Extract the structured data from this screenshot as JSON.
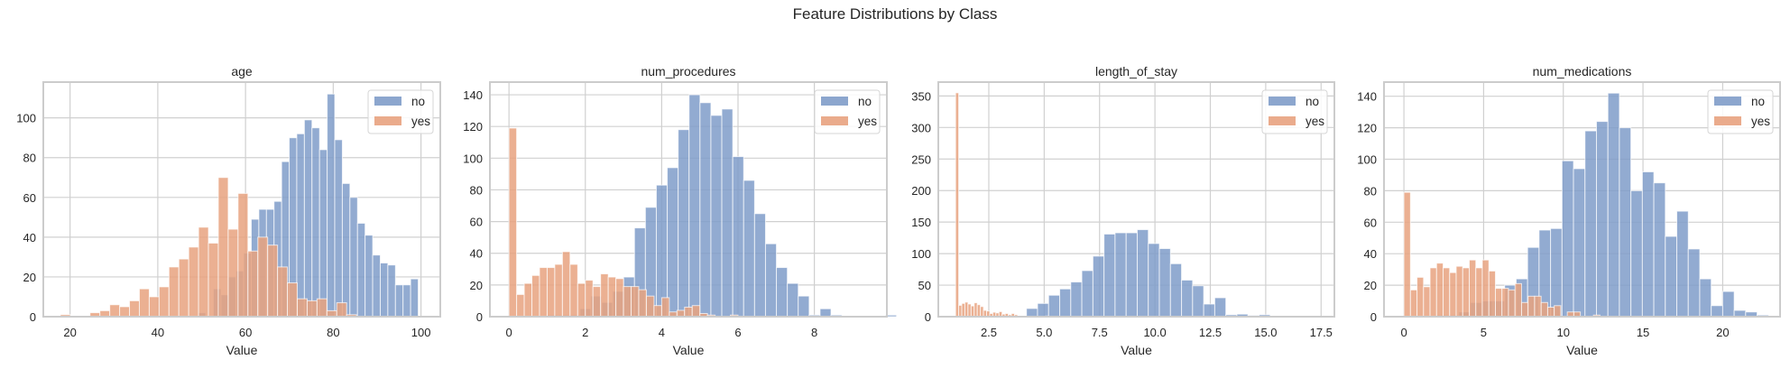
{
  "figure": {
    "title": "Feature Distributions by Class"
  },
  "colors": {
    "no": "#7f9cc9",
    "yes": "#e8a27f",
    "grid": "#d0d0d0",
    "spine": "#cccccc"
  },
  "legend": {
    "labels": [
      "no",
      "yes"
    ]
  },
  "chart_data": [
    {
      "type": "bar",
      "title": "age",
      "xlabel": "Value",
      "ylabel": "",
      "xlim": [
        13.9,
        104.4
      ],
      "ylim": [
        0,
        118
      ],
      "xticks": [
        20,
        40,
        60,
        80,
        100
      ],
      "xtick_labels": [
        "20",
        "40",
        "60",
        "80",
        "100"
      ],
      "yticks": [
        0,
        20,
        40,
        60,
        80,
        100
      ],
      "ytick_labels": [
        "0",
        "20",
        "40",
        "60",
        "80",
        "100"
      ],
      "grid": true,
      "legend_position": "upper right",
      "series": [
        {
          "name": "no",
          "bin_start": 49.2,
          "bin_width": 1.73,
          "values": [
            2,
            0,
            14,
            11,
            20,
            23,
            32,
            49,
            54,
            54,
            58,
            78,
            90,
            92,
            99,
            95,
            84,
            112,
            89,
            67,
            60,
            47,
            41,
            31,
            27,
            26,
            16,
            16,
            19
          ]
        },
        {
          "name": "yes",
          "bin_start": 17.8,
          "bin_width": 2.25,
          "values": [
            1,
            0,
            0,
            2,
            3,
            6,
            5,
            8,
            14,
            10,
            15,
            25,
            29,
            35,
            45,
            37,
            70,
            44,
            62,
            33,
            40,
            36,
            25,
            17,
            9,
            8,
            9,
            3,
            7,
            1
          ]
        }
      ]
    },
    {
      "type": "bar",
      "title": "num_procedures",
      "xlabel": "Value",
      "ylabel": "",
      "xlim": [
        -0.5,
        9.9
      ],
      "ylim": [
        0,
        148
      ],
      "xticks": [
        0,
        2,
        4,
        6,
        8
      ],
      "xtick_labels": [
        "0",
        "2",
        "4",
        "6",
        "8"
      ],
      "yticks": [
        0,
        20,
        40,
        60,
        80,
        100,
        120,
        140
      ],
      "ytick_labels": [
        "0",
        "20",
        "40",
        "60",
        "80",
        "100",
        "120",
        "140"
      ],
      "grid": true,
      "legend_position": "upper right",
      "series": [
        {
          "name": "no",
          "bin_start": 1.0,
          "bin_width": 0.286,
          "values": [
            1,
            1,
            1,
            5,
            13,
            9,
            16,
            25,
            56,
            69,
            83,
            94,
            118,
            140,
            135,
            127,
            131,
            101,
            86,
            65,
            46,
            31,
            21,
            13,
            1,
            5,
            1,
            0,
            0,
            0,
            0,
            1
          ]
        },
        {
          "name": "yes",
          "bin_start": 0.0,
          "bin_width": 0.2,
          "values": [
            119,
            14,
            21,
            26,
            31,
            31,
            33,
            41,
            33,
            21,
            23,
            19,
            27,
            25,
            24,
            19,
            19,
            17,
            13,
            7,
            12,
            3,
            4,
            6,
            7,
            2,
            1,
            0,
            0,
            1
          ]
        }
      ]
    },
    {
      "type": "bar",
      "title": "length_of_stay",
      "xlabel": "Value",
      "ylabel": "",
      "xlim": [
        0.22,
        18.1
      ],
      "ylim": [
        0,
        372
      ],
      "xticks": [
        2.5,
        5.0,
        7.5,
        10.0,
        12.5,
        15.0,
        17.5
      ],
      "xtick_labels": [
        "2.5",
        "5.0",
        "7.5",
        "10.0",
        "12.5",
        "15.0",
        "17.5"
      ],
      "yticks": [
        0,
        50,
        100,
        150,
        200,
        250,
        300,
        350
      ],
      "ytick_labels": [
        "0",
        "50",
        "100",
        "150",
        "200",
        "250",
        "300",
        "350"
      ],
      "grid": true,
      "legend_position": "upper right",
      "series": [
        {
          "name": "no",
          "bin_start": 4.2,
          "bin_width": 0.5,
          "values": [
            13,
            21,
            34,
            44,
            55,
            73,
            96,
            131,
            133,
            133,
            138,
            116,
            108,
            84,
            58,
            49,
            20,
            30,
            3,
            4,
            2,
            3
          ]
        },
        {
          "name": "yes",
          "bin_start": 1.0,
          "bin_width": 0.14,
          "values": [
            355,
            18,
            21,
            23,
            20,
            17,
            22,
            19,
            16,
            10,
            9,
            5,
            7,
            6,
            8,
            4,
            5,
            3,
            5,
            3,
            1,
            1,
            0,
            0,
            0,
            0,
            0,
            0,
            0,
            1
          ]
        }
      ]
    },
    {
      "type": "bar",
      "title": "num_medications",
      "xlabel": "Value",
      "ylabel": "",
      "xlim": [
        -1.25,
        23.6
      ],
      "ylim": [
        0,
        149
      ],
      "xticks": [
        0,
        5,
        10,
        15,
        20
      ],
      "xtick_labels": [
        "0",
        "5",
        "10",
        "15",
        "20"
      ],
      "yticks": [
        0,
        20,
        40,
        60,
        80,
        100,
        120,
        140
      ],
      "ytick_labels": [
        "0",
        "20",
        "40",
        "60",
        "80",
        "100",
        "120",
        "140"
      ],
      "grid": true,
      "legend_position": "upper right",
      "series": [
        {
          "name": "no",
          "bin_start": 2.0,
          "bin_width": 0.72,
          "values": [
            1,
            1,
            3,
            9,
            10,
            10,
            20,
            24,
            44,
            55,
            56,
            99,
            94,
            118,
            124,
            142,
            120,
            80,
            92,
            85,
            51,
            67,
            43,
            24,
            7,
            16,
            4,
            3,
            1
          ]
        },
        {
          "name": "yes",
          "bin_start": 0.0,
          "bin_width": 0.41,
          "values": [
            79,
            17,
            25,
            19,
            31,
            34,
            31,
            28,
            32,
            31,
            36,
            31,
            36,
            29,
            18,
            18,
            17,
            21,
            9,
            13,
            13,
            9,
            6,
            7,
            0,
            3,
            3,
            0,
            0,
            1
          ]
        }
      ]
    }
  ]
}
